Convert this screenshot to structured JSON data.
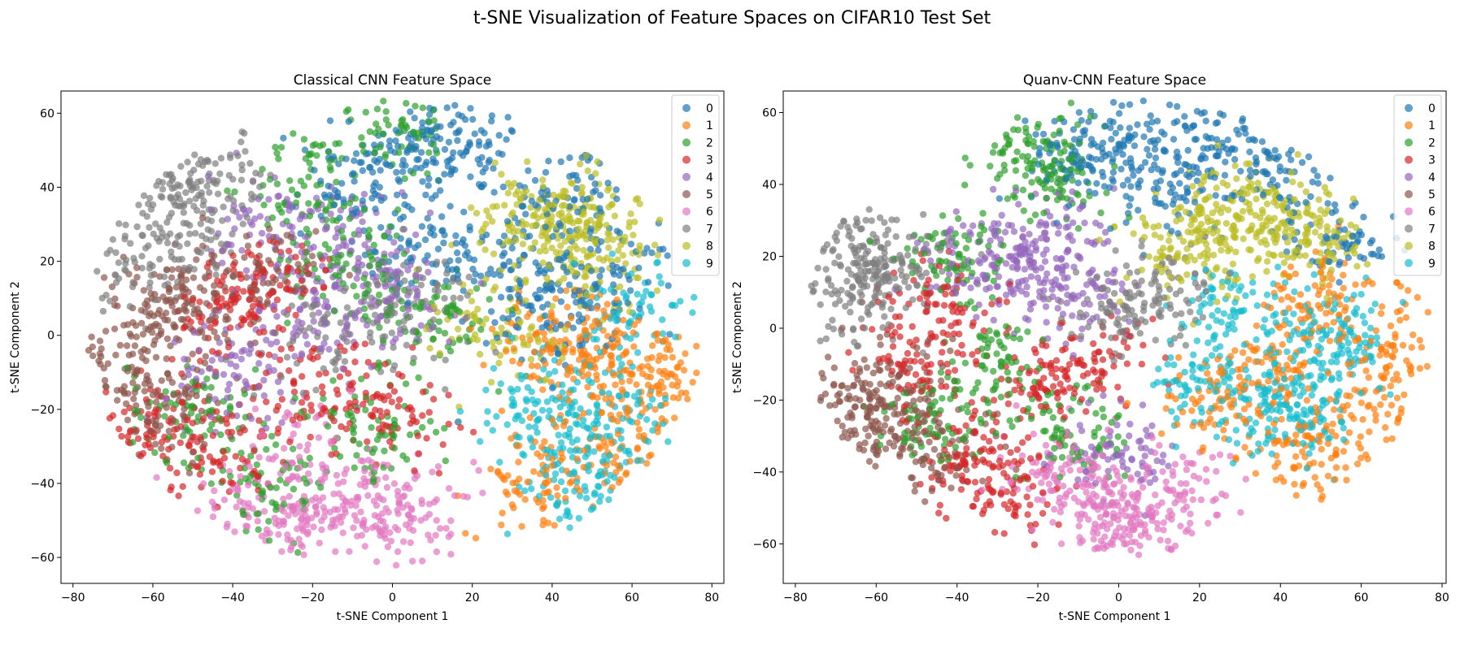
{
  "figure": {
    "suptitle": "t-SNE Visualization of Feature Spaces on CIFAR10 Test Set"
  },
  "colors": [
    "#1f77b4",
    "#ff7f0e",
    "#2ca02c",
    "#d62728",
    "#9467bd",
    "#8c564b",
    "#e377c2",
    "#7f7f7f",
    "#bcbd22",
    "#17becf"
  ],
  "chart_data": [
    {
      "type": "scatter",
      "title": "Classical CNN Feature Space",
      "xlabel": "t-SNE Component 1",
      "ylabel": "t-SNE Component 2",
      "xlim": [
        -83,
        83
      ],
      "ylim": [
        -67,
        66
      ],
      "xticks": [
        -80,
        -60,
        -40,
        -20,
        0,
        20,
        40,
        60,
        80
      ],
      "yticks": [
        -60,
        -40,
        -20,
        0,
        20,
        40,
        60
      ],
      "xtick_labels": [
        "−80",
        "−60",
        "−40",
        "−20",
        "0",
        "20",
        "40",
        "60",
        "80"
      ],
      "ytick_labels": [
        "−60",
        "−40",
        "−20",
        "0",
        "20",
        "40",
        "60"
      ],
      "grid": false,
      "legend_position": "top-right",
      "legend": [
        "0",
        "1",
        "2",
        "3",
        "4",
        "5",
        "6",
        "7",
        "8",
        "9"
      ],
      "series": [
        {
          "label": "0",
          "centers": [
            [
              20,
              52
            ],
            [
              5,
              50
            ],
            [
              45,
              38
            ],
            [
              30,
              20
            ],
            [
              10,
              25
            ],
            [
              -10,
              40
            ],
            [
              55,
              15
            ],
            [
              40,
              5
            ]
          ]
        },
        {
          "label": "1",
          "centers": [
            [
              60,
              -10
            ],
            [
              68,
              -15
            ],
            [
              35,
              -40
            ],
            [
              40,
              -5
            ],
            [
              55,
              -30
            ],
            [
              50,
              0
            ]
          ]
        },
        {
          "label": "2",
          "centers": [
            [
              0,
              55
            ],
            [
              -20,
              40
            ],
            [
              -10,
              20
            ],
            [
              -50,
              -20
            ],
            [
              -30,
              -40
            ],
            [
              -5,
              -25
            ],
            [
              10,
              5
            ]
          ]
        },
        {
          "label": "3",
          "centers": [
            [
              -60,
              -25
            ],
            [
              -40,
              5
            ],
            [
              -20,
              -15
            ],
            [
              0,
              -20
            ],
            [
              -45,
              -30
            ],
            [
              -30,
              15
            ]
          ]
        },
        {
          "label": "4",
          "centers": [
            [
              -30,
              30
            ],
            [
              -10,
              25
            ],
            [
              0,
              10
            ],
            [
              -40,
              -10
            ],
            [
              -20,
              5
            ]
          ]
        },
        {
          "label": "5",
          "centers": [
            [
              -68,
              -10
            ],
            [
              -60,
              5
            ],
            [
              -50,
              10
            ],
            [
              -35,
              15
            ],
            [
              -55,
              -20
            ]
          ]
        },
        {
          "label": "6",
          "centers": [
            [
              -20,
              -50
            ],
            [
              -5,
              -45
            ],
            [
              5,
              -50
            ],
            [
              -25,
              -35
            ],
            [
              -35,
              -50
            ]
          ]
        },
        {
          "label": "7",
          "centers": [
            [
              -58,
              42
            ],
            [
              -45,
              42
            ],
            [
              -50,
              30
            ],
            [
              -65,
              20
            ],
            [
              -15,
              0
            ],
            [
              5,
              10
            ]
          ]
        },
        {
          "label": "8",
          "centers": [
            [
              50,
              30
            ],
            [
              40,
              35
            ],
            [
              50,
              20
            ],
            [
              28,
              0
            ],
            [
              35,
              28
            ]
          ]
        },
        {
          "label": "9",
          "centers": [
            [
              45,
              -30
            ],
            [
              50,
              -45
            ],
            [
              35,
              -20
            ],
            [
              60,
              5
            ],
            [
              55,
              -20
            ]
          ]
        }
      ]
    },
    {
      "type": "scatter",
      "title": "Quanv-CNN Feature Space",
      "xlabel": "t-SNE Component 1",
      "ylabel": "t-SNE Component 2",
      "xlim": [
        -83,
        81
      ],
      "ylim": [
        -71,
        66
      ],
      "xticks": [
        -80,
        -60,
        -40,
        -20,
        0,
        20,
        40,
        60,
        80
      ],
      "yticks": [
        -60,
        -40,
        -20,
        0,
        20,
        40,
        60
      ],
      "xtick_labels": [
        "−80",
        "−60",
        "−40",
        "−20",
        "0",
        "20",
        "40",
        "60",
        "80"
      ],
      "ytick_labels": [
        "−60",
        "−40",
        "−20",
        "0",
        "20",
        "40",
        "60"
      ],
      "grid": false,
      "legend_position": "top-right",
      "legend": [
        "0",
        "1",
        "2",
        "3",
        "4",
        "5",
        "6",
        "7",
        "8",
        "9"
      ],
      "series": [
        {
          "label": "0",
          "centers": [
            [
              0,
              52
            ],
            [
              20,
              52
            ],
            [
              35,
              45
            ],
            [
              10,
              40
            ],
            [
              -10,
              48
            ],
            [
              55,
              25
            ]
          ]
        },
        {
          "label": "1",
          "centers": [
            [
              65,
              -5
            ],
            [
              60,
              -25
            ],
            [
              40,
              -10
            ],
            [
              45,
              -35
            ],
            [
              25,
              -20
            ],
            [
              50,
              10
            ]
          ]
        },
        {
          "label": "2",
          "centers": [
            [
              -15,
              42
            ],
            [
              -20,
              50
            ],
            [
              -40,
              20
            ],
            [
              -30,
              -10
            ],
            [
              -10,
              -30
            ],
            [
              -45,
              -25
            ]
          ]
        },
        {
          "label": "3",
          "centers": [
            [
              -50,
              -10
            ],
            [
              -35,
              -35
            ],
            [
              -20,
              -15
            ],
            [
              -5,
              -10
            ],
            [
              -45,
              5
            ],
            [
              -30,
              -45
            ]
          ]
        },
        {
          "label": "4",
          "centers": [
            [
              -25,
              18
            ],
            [
              -10,
              10
            ],
            [
              0,
              -35
            ],
            [
              -35,
              20
            ],
            [
              -15,
              25
            ]
          ]
        },
        {
          "label": "5",
          "centers": [
            [
              -60,
              -30
            ],
            [
              -55,
              -15
            ],
            [
              -45,
              -35
            ],
            [
              -65,
              -20
            ]
          ]
        },
        {
          "label": "6",
          "centers": [
            [
              0,
              -55
            ],
            [
              -5,
              -45
            ],
            [
              5,
              -60
            ],
            [
              15,
              -45
            ],
            [
              -15,
              -40
            ]
          ]
        },
        {
          "label": "7",
          "centers": [
            [
              -70,
              25
            ],
            [
              -60,
              20
            ],
            [
              -55,
              15
            ],
            [
              -65,
              8
            ],
            [
              10,
              10
            ],
            [
              0,
              5
            ]
          ]
        },
        {
          "label": "8",
          "centers": [
            [
              40,
              30
            ],
            [
              25,
              25
            ],
            [
              50,
              25
            ],
            [
              30,
              35
            ],
            [
              15,
              20
            ]
          ]
        },
        {
          "label": "9",
          "centers": [
            [
              50,
              -10
            ],
            [
              55,
              0
            ],
            [
              35,
              -20
            ],
            [
              20,
              -15
            ],
            [
              30,
              5
            ],
            [
              45,
              -25
            ]
          ]
        }
      ]
    }
  ]
}
